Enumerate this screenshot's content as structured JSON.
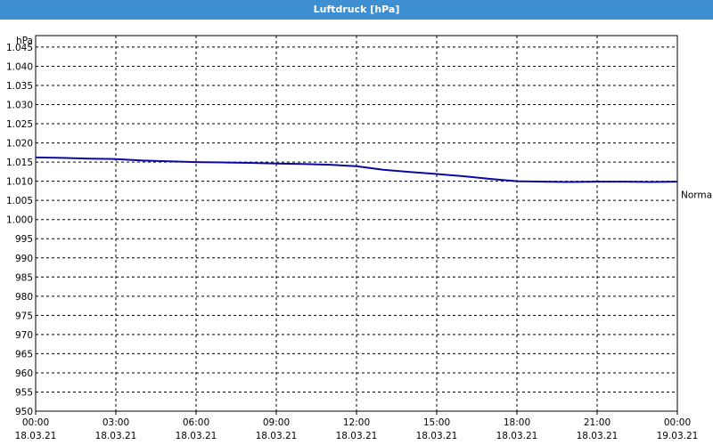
{
  "title": "Luftdruck [hPa]",
  "chart_data": {
    "type": "line",
    "title": "Luftdruck [hPa]",
    "ylabel": "hPa",
    "ylim": [
      950,
      1048
    ],
    "yticks": [
      "950",
      "955",
      "960",
      "965",
      "970",
      "975",
      "980",
      "985",
      "990",
      "995",
      "1.000",
      "1.005",
      "1.010",
      "1.015",
      "1.020",
      "1.025",
      "1.030",
      "1.035",
      "1.040",
      "1.045"
    ],
    "xticks": [
      {
        "time": "00:00",
        "date": "18.03.21"
      },
      {
        "time": "03:00",
        "date": "18.03.21"
      },
      {
        "time": "06:00",
        "date": "18.03.21"
      },
      {
        "time": "09:00",
        "date": "18.03.21"
      },
      {
        "time": "12:00",
        "date": "18.03.21"
      },
      {
        "time": "15:00",
        "date": "18.03.21"
      },
      {
        "time": "18:00",
        "date": "18.03.21"
      },
      {
        "time": "21:00",
        "date": "18.03.21"
      },
      {
        "time": "00:00",
        "date": "19.03.21"
      }
    ],
    "reference_label": "Normal",
    "reference_value": 1006.5,
    "grid": true,
    "line_color": "#0a0aa0",
    "series": [
      {
        "x": [
          "18.03.21 00:00",
          "18.03.21 01:00",
          "18.03.21 02:00",
          "18.03.21 03:00",
          "18.03.21 04:00",
          "18.03.21 05:00",
          "18.03.21 06:00",
          "18.03.21 07:00",
          "18.03.21 08:00",
          "18.03.21 09:00",
          "18.03.21 10:00",
          "18.03.21 11:00",
          "18.03.21 12:00",
          "18.03.21 13:00",
          "18.03.21 14:00",
          "18.03.21 15:00",
          "18.03.21 16:00",
          "18.03.21 17:00",
          "18.03.21 18:00",
          "18.03.21 19:00",
          "18.03.21 20:00",
          "18.03.21 21:00",
          "18.03.21 22:00",
          "18.03.21 23:00",
          "19.03.21 00:00"
        ],
        "values": [
          1016.2,
          1016.1,
          1015.9,
          1015.8,
          1015.4,
          1015.2,
          1015.0,
          1014.9,
          1014.8,
          1014.6,
          1014.5,
          1014.3,
          1013.9,
          1013.0,
          1012.4,
          1011.9,
          1011.3,
          1010.6,
          1010.0,
          1009.9,
          1009.8,
          1009.9,
          1009.9,
          1009.8,
          1009.9
        ]
      }
    ]
  }
}
